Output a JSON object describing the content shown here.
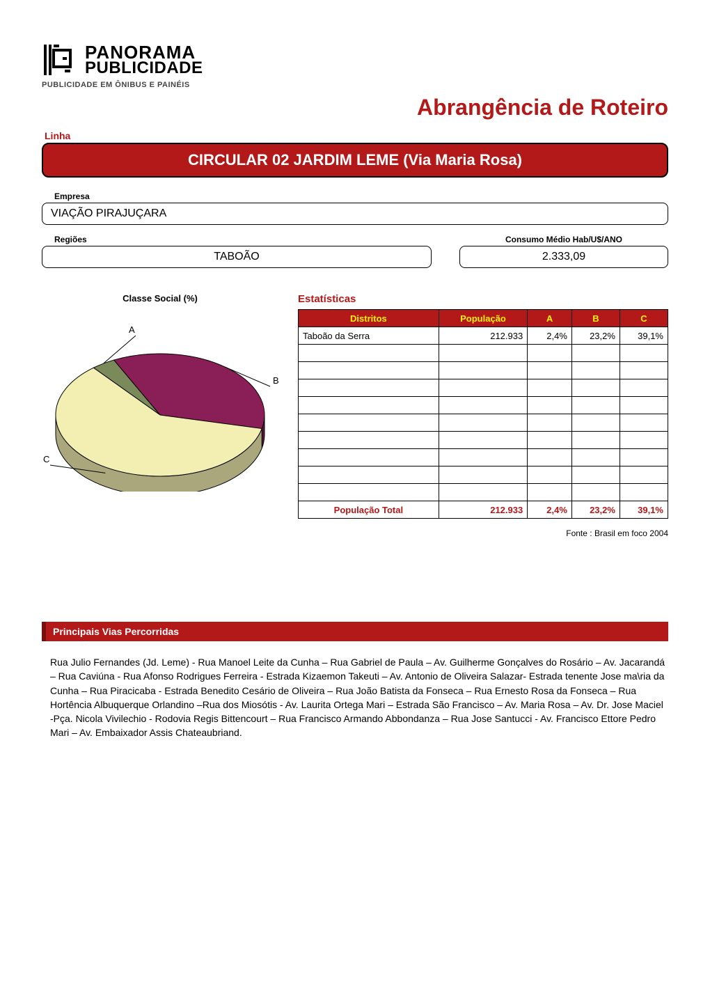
{
  "logo": {
    "line1": "PANORAMA",
    "line2": "PUBLICIDADE",
    "tagline": "PUBLICIDADE EM ÔNIBUS E PAINÉIS",
    "colors": {
      "ink": "#000000",
      "tagline": "#444444"
    }
  },
  "title": {
    "text": "Abrangência de Roteiro",
    "color": "#b31919",
    "fontsize": 32
  },
  "linha": {
    "label": "Linha",
    "value": "CIRCULAR 02 JARDIM LEME (Via Maria Rosa)",
    "banner_bg": "#b31919",
    "banner_fg": "#ffffff"
  },
  "empresa": {
    "label": "Empresa",
    "value": "VIAÇÃO PIRAJUÇARA"
  },
  "regioes": {
    "label": "Regiões",
    "value": "TABOÃO"
  },
  "consumo": {
    "label": "Consumo Médio Hab/U$/ANO",
    "value": "2.333,09"
  },
  "estatisticas": {
    "heading": "Estatísticas",
    "heading_color": "#b31919",
    "columns": [
      "Distritos",
      "População",
      "A",
      "B",
      "C"
    ],
    "header_bg": "#b31919",
    "header_fg": "#fff200",
    "border_color": "#000000",
    "rows": [
      {
        "distrito": "Taboão da Serra",
        "populacao": "212.933",
        "a": "2,4%",
        "b": "23,2%",
        "c": "39,1%"
      },
      {
        "distrito": "",
        "populacao": "",
        "a": "",
        "b": "",
        "c": ""
      },
      {
        "distrito": "",
        "populacao": "",
        "a": "",
        "b": "",
        "c": ""
      },
      {
        "distrito": "",
        "populacao": "",
        "a": "",
        "b": "",
        "c": ""
      },
      {
        "distrito": "",
        "populacao": "",
        "a": "",
        "b": "",
        "c": ""
      },
      {
        "distrito": "",
        "populacao": "",
        "a": "",
        "b": "",
        "c": ""
      },
      {
        "distrito": "",
        "populacao": "",
        "a": "",
        "b": "",
        "c": ""
      },
      {
        "distrito": "",
        "populacao": "",
        "a": "",
        "b": "",
        "c": ""
      },
      {
        "distrito": "",
        "populacao": "",
        "a": "",
        "b": "",
        "c": ""
      },
      {
        "distrito": "",
        "populacao": "",
        "a": "",
        "b": "",
        "c": ""
      }
    ],
    "total_row": {
      "label": "População Total",
      "populacao": "212.933",
      "a": "2,4%",
      "b": "23,2%",
      "c": "39,1%"
    },
    "source": "Fonte : Brasil em foco 2004"
  },
  "pie": {
    "title": "Classe Social (%)",
    "type": "pie",
    "aspect_ratio": 1.35,
    "background_color": "#ffffff",
    "stroke_color": "#000000",
    "stroke_width": 1,
    "label_fontsize": 13,
    "slices": [
      {
        "label": "A",
        "value": 2.4,
        "color": "#7a8a5a"
      },
      {
        "label": "B",
        "value": 23.2,
        "color": "#8a1e57"
      },
      {
        "label": "C",
        "value": 39.1,
        "color": "#f3eeb2"
      }
    ]
  },
  "vias": {
    "header": "Principais  Vias Percorridas",
    "header_bg": "#b31919",
    "header_fg": "#ffffff",
    "header_accent": "#7a0f0f",
    "body": "Rua  Julio  Fernandes (Jd. Leme) -  Rua Manoel  Leite da Cunha – Rua Gabriel  de Paula – Av. Guilherme Gonçalves do Rosário – Av. Jacarandá – Rua Caviúna -  Rua Afonso Rodrigues Ferreira -  Estrada Kizaemon Takeuti – Av. Antonio de Oliveira Salazar- Estrada tenente Jose ma\\ria da Cunha – Rua Piracicaba -  Estrada Benedito Cesário de Oliveira – Rua João Batista da Fonseca – Rua  Ernesto Rosa da Fonseca – Rua Hortência Albuquerque Orlandino –Rua dos Miosótis -  Av. Laurita Ortega Mari –  Estrada São Francisco – Av. Maria Rosa – Av. Dr. Jose Maciel -Pça. Nicola Vivilechio -  Rodovia Regis Bittencourt – Rua Francisco Armando Abbondanza – Rua Jose Santucci -  Av. Francisco Ettore Pedro Mari – Av. Embaixador Assis Chateaubriand."
  }
}
